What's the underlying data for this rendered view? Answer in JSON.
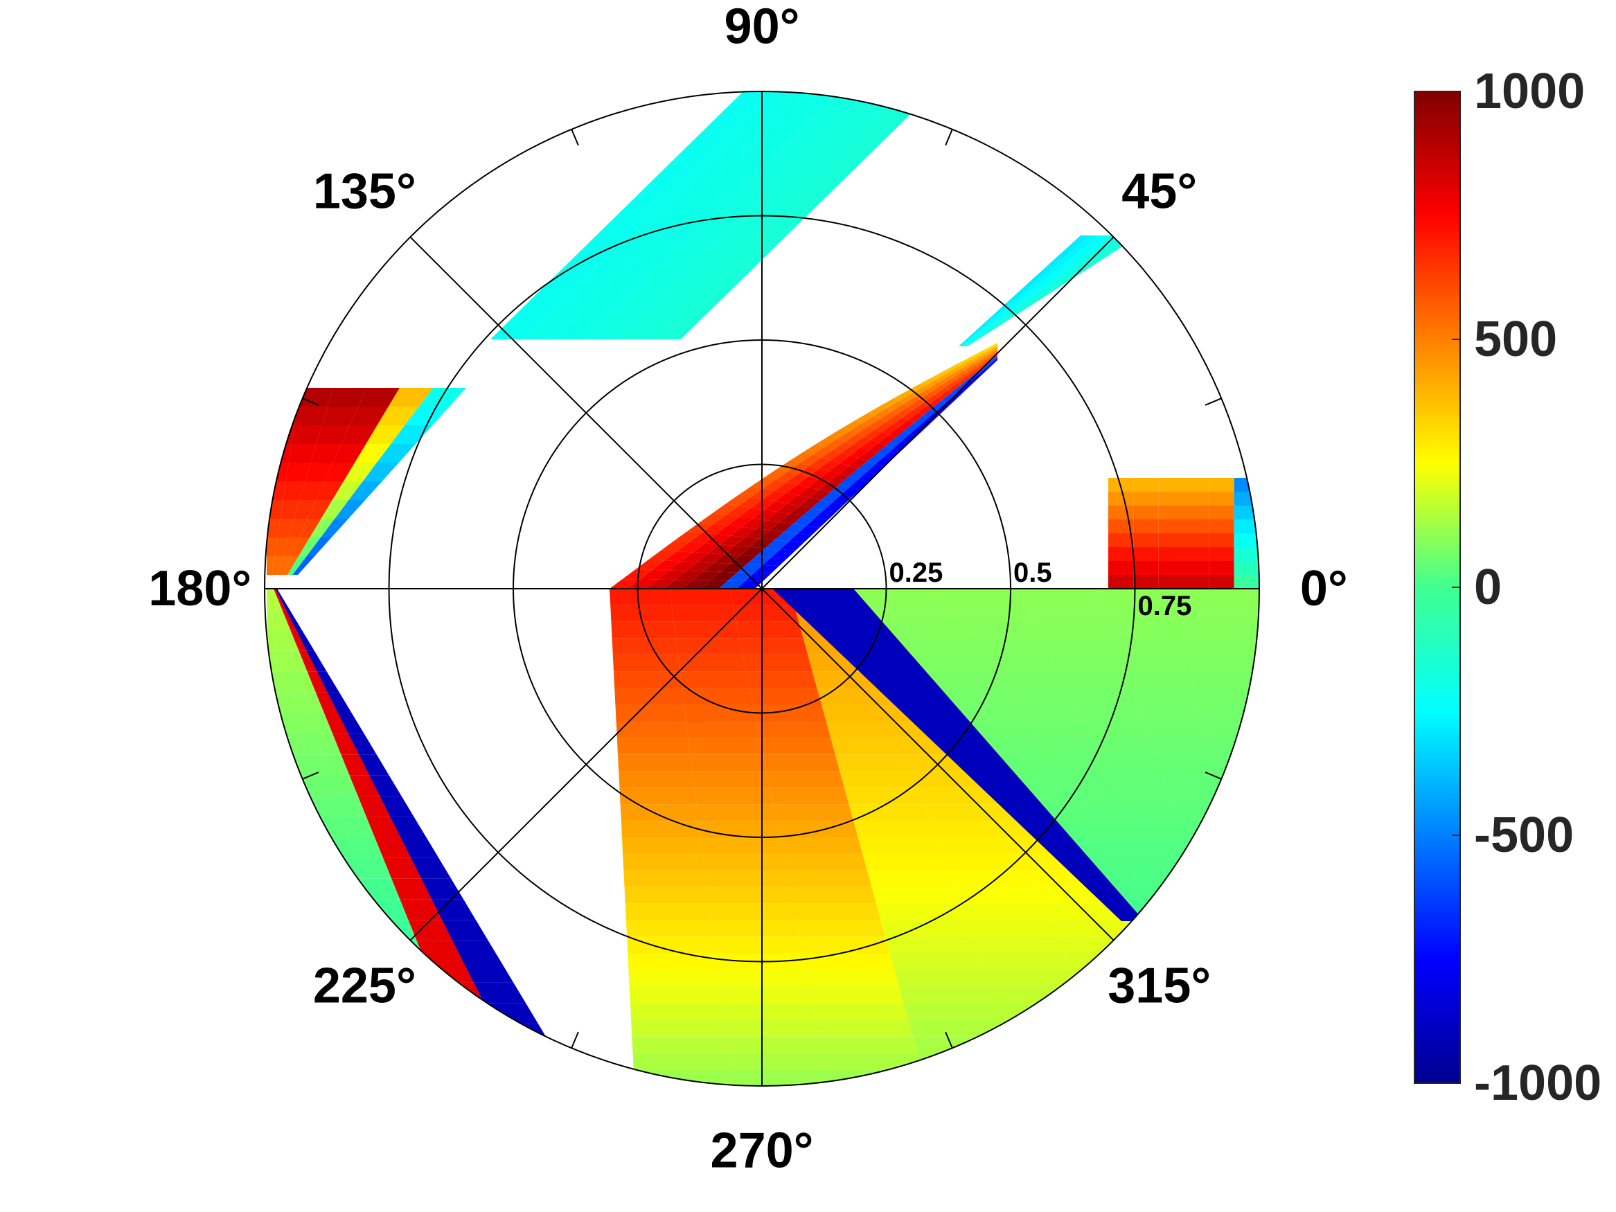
{
  "chart_data": {
    "type": "polar-filled-contour",
    "angle_ticks": [
      "0°",
      "45°",
      "90°",
      "135°",
      "180°",
      "225°",
      "270°",
      "315°"
    ],
    "angle_values_deg": [
      0,
      45,
      90,
      135,
      180,
      225,
      270,
      315
    ],
    "radial_ticks": [
      {
        "value": 0.25,
        "label": "0.25"
      },
      {
        "value": 0.5,
        "label": "0.5"
      },
      {
        "value": 0.75,
        "label": "0.75"
      }
    ],
    "rlim": [
      0,
      1
    ],
    "colorbar": {
      "colormap": "jet",
      "clim": [
        -1000,
        1000
      ],
      "ticks": [
        {
          "value": 1000,
          "label": "1000"
        },
        {
          "value": 500,
          "label": "500"
        },
        {
          "value": 0,
          "label": "0"
        },
        {
          "value": -500,
          "label": "-500"
        },
        {
          "value": -1000,
          "label": "-1000"
        }
      ]
    },
    "regions": [
      {
        "name": "upper outer band",
        "angle_range_deg": [
          45,
          155
        ],
        "value_range": [
          -250,
          -150
        ]
      },
      {
        "name": "inner 0-90 lobe",
        "angle_range_deg": [
          0,
          45
        ],
        "value_range": [
          -1000,
          1000
        ]
      },
      {
        "name": "outer 0 lobe",
        "angle_range_deg": [
          0,
          25
        ],
        "value_range": [
          -1000,
          900
        ]
      },
      {
        "name": "outer 135-180 lobe",
        "angle_range_deg": [
          140,
          180
        ],
        "value_range": [
          -1000,
          900
        ]
      },
      {
        "name": "lower central band",
        "angle_range_deg": [
          180,
          315
        ],
        "value_range": [
          -300,
          900
        ]
      },
      {
        "name": "lower right band",
        "angle_range_deg": [
          290,
          360
        ],
        "value_range": [
          -1000,
          800
        ]
      },
      {
        "name": "lower left band",
        "angle_range_deg": [
          200,
          270
        ],
        "value_range": [
          -300,
          900
        ]
      }
    ],
    "grid": true,
    "legend": "colorbar-right"
  }
}
